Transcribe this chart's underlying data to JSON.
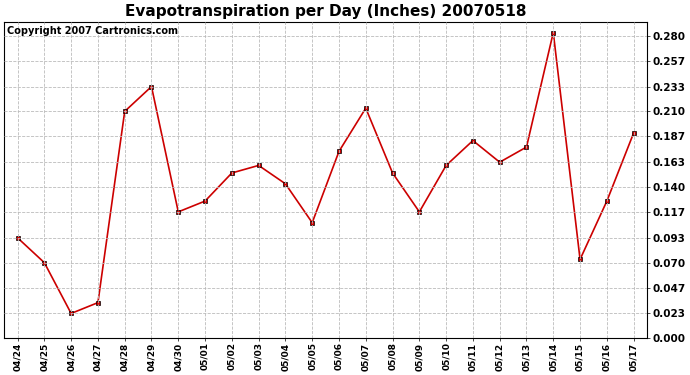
{
  "title": "Evapotranspiration per Day (Inches) 20070518",
  "copyright_text": "Copyright 2007 Cartronics.com",
  "x_labels": [
    "04/24",
    "04/25",
    "04/26",
    "04/27",
    "04/28",
    "04/29",
    "04/30",
    "05/01",
    "05/02",
    "05/03",
    "05/04",
    "05/05",
    "05/06",
    "05/07",
    "05/08",
    "05/09",
    "05/10",
    "05/11",
    "05/12",
    "05/13",
    "05/14",
    "05/15",
    "05/16",
    "05/17"
  ],
  "y_values": [
    0.093,
    0.07,
    0.023,
    0.033,
    0.21,
    0.233,
    0.117,
    0.127,
    0.153,
    0.16,
    0.143,
    0.107,
    0.173,
    0.213,
    0.153,
    0.117,
    0.16,
    0.183,
    0.163,
    0.177,
    0.283,
    0.073,
    0.127,
    0.19
  ],
  "y_ticks": [
    0.0,
    0.023,
    0.047,
    0.07,
    0.093,
    0.117,
    0.14,
    0.163,
    0.187,
    0.21,
    0.233,
    0.257,
    0.28
  ],
  "ylim_max": 0.293,
  "line_color": "#cc0000",
  "marker_color": "#cc0000",
  "marker_edge_color": "#000000",
  "background_color": "#ffffff",
  "grid_color": "#bbbbbb",
  "title_fontsize": 11,
  "copyright_fontsize": 7,
  "tick_fontsize": 7.5,
  "xtick_fontsize": 6.5
}
